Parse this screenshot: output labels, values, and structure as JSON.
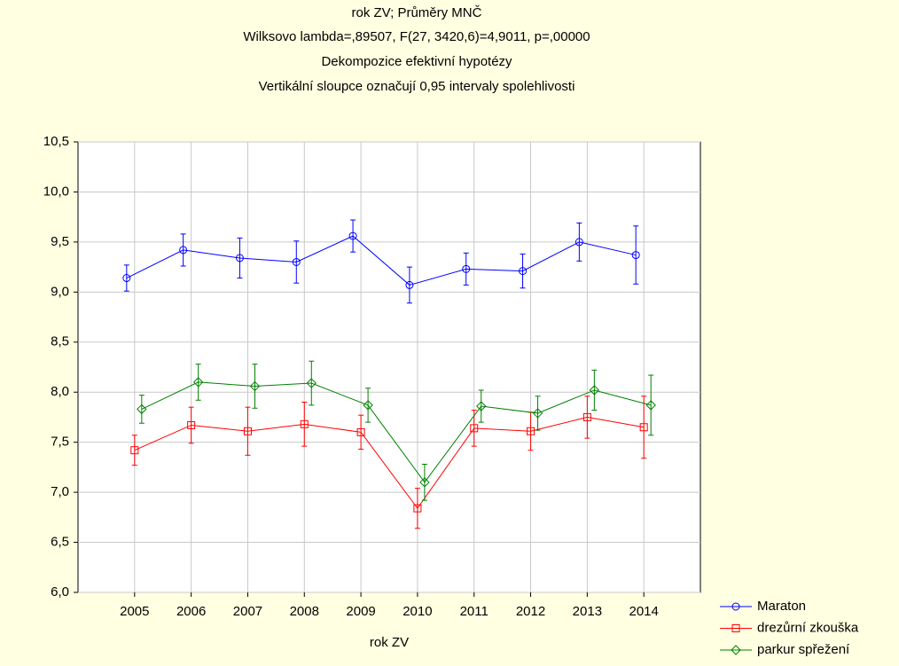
{
  "chart_data": {
    "type": "line",
    "title": "rok ZV; Průměry MNČ",
    "subtitles": [
      "Wilksovo lambda=,89507, F(27, 3420,6)=4,9011, p=,00000",
      "Dekompozice efektivní hypotézy",
      "Vertikální sloupce označují 0,95 intervaly spolehlivosti"
    ],
    "x_label": "rok ZV",
    "categories": [
      "2005",
      "2006",
      "2007",
      "2008",
      "2009",
      "2010",
      "2011",
      "2012",
      "2013",
      "2014"
    ],
    "ylim": [
      6.0,
      10.5
    ],
    "yticks": [
      {
        "value": 6.0,
        "label": "6,0"
      },
      {
        "value": 6.5,
        "label": "6,5"
      },
      {
        "value": 7.0,
        "label": "7,0"
      },
      {
        "value": 7.5,
        "label": "7,5"
      },
      {
        "value": 8.0,
        "label": "8,0"
      },
      {
        "value": 8.5,
        "label": "8,5"
      },
      {
        "value": 9.0,
        "label": "9,0"
      },
      {
        "value": 9.5,
        "label": "9,5"
      },
      {
        "value": 10.0,
        "label": "10,0"
      },
      {
        "value": 10.5,
        "label": "10,5"
      }
    ],
    "grid": true,
    "legend": "bottom-right",
    "series": [
      {
        "name": "Maraton",
        "color": "#0000ff",
        "marker": "circle",
        "values": [
          9.14,
          9.42,
          9.34,
          9.3,
          9.56,
          9.07,
          9.23,
          9.21,
          9.5,
          9.37
        ],
        "errors": [
          0.13,
          0.16,
          0.2,
          0.21,
          0.16,
          0.18,
          0.16,
          0.17,
          0.19,
          0.29
        ]
      },
      {
        "name": "drezůrní zkouška",
        "color": "#ff0000",
        "marker": "square",
        "values": [
          7.42,
          7.67,
          7.61,
          7.68,
          7.6,
          6.84,
          7.64,
          7.61,
          7.75,
          7.65
        ],
        "errors": [
          0.15,
          0.18,
          0.24,
          0.22,
          0.17,
          0.2,
          0.18,
          0.19,
          0.21,
          0.31
        ]
      },
      {
        "name": "parkur spřežení",
        "color": "#008000",
        "marker": "diamond",
        "values": [
          7.83,
          8.1,
          8.06,
          8.09,
          7.87,
          7.1,
          7.86,
          7.79,
          8.02,
          7.87
        ],
        "errors": [
          0.14,
          0.18,
          0.22,
          0.22,
          0.17,
          0.18,
          0.16,
          0.17,
          0.2,
          0.3
        ]
      }
    ]
  }
}
